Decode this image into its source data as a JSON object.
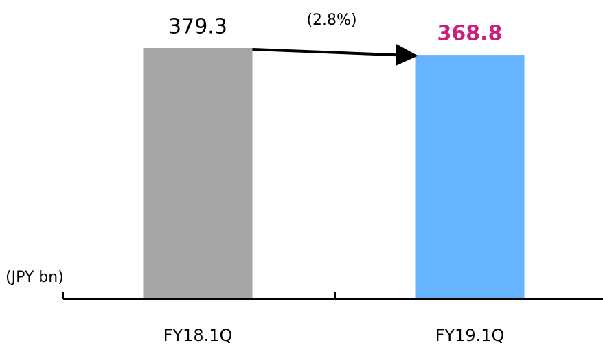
{
  "chart_data": {
    "type": "bar",
    "categories": [
      "FY18.1Q",
      "FY19.1Q"
    ],
    "values": [
      379.3,
      368.8
    ],
    "colors": [
      "#a6a6a6",
      "#66b3ff"
    ],
    "label_colors": [
      "#000000",
      "#cc1f7a"
    ],
    "unit_label": "(JPY bn)",
    "annotation": "(2.8%)",
    "ylim": [
      0,
      400
    ]
  }
}
